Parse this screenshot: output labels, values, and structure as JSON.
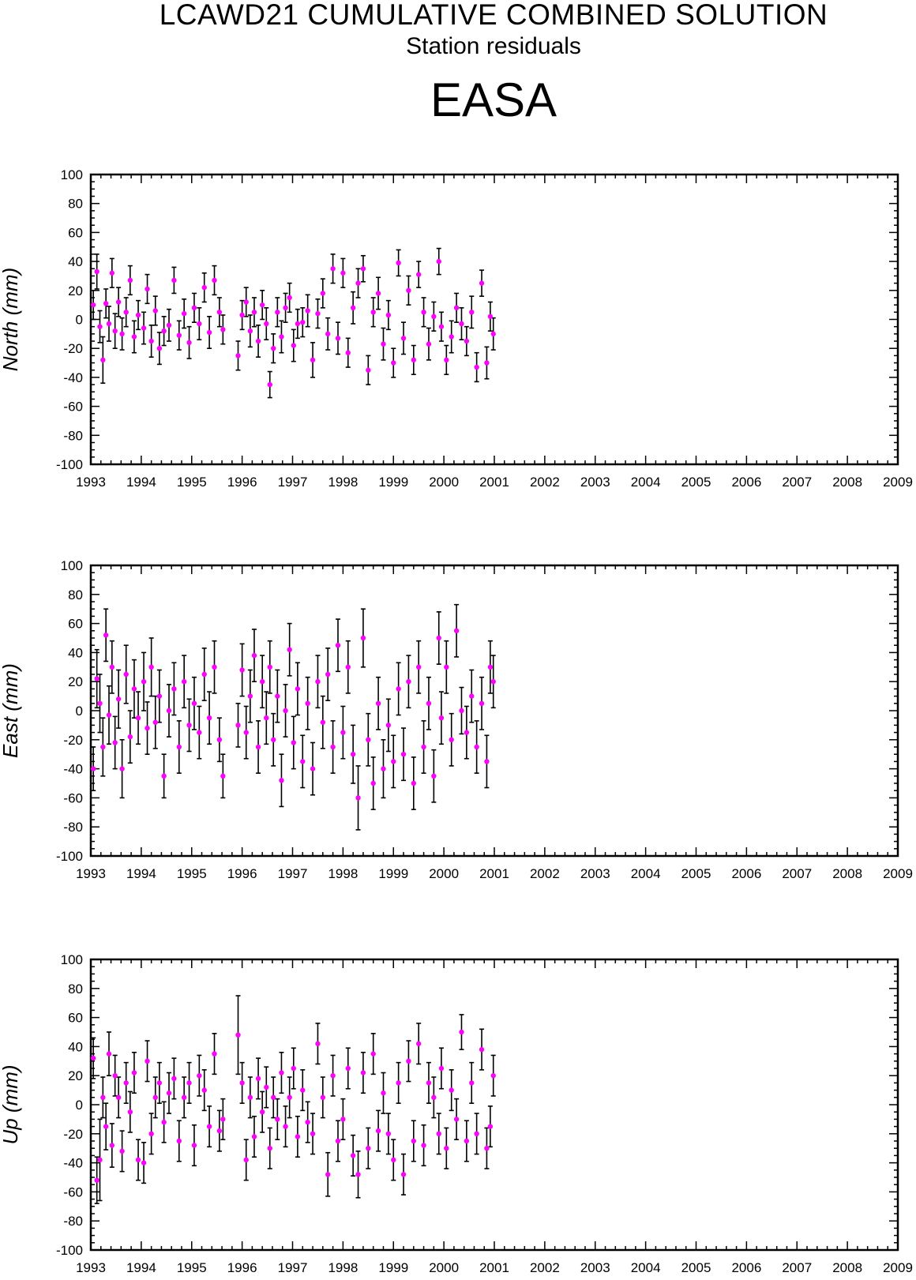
{
  "header": {
    "title": "LCAWD21 CUMULATIVE COMBINED SOLUTION",
    "subtitle": "Station residuals",
    "station": "EASA"
  },
  "colors": {
    "marker": "#ff00ff",
    "errorbar": "#000000",
    "axis": "#000000"
  },
  "chart_data": [
    {
      "type": "scatter",
      "ylabel": "North (mm)",
      "xlim": [
        1993,
        2009
      ],
      "ylim": [
        -100,
        100
      ],
      "xticks": [
        "1993",
        "1994",
        "1995",
        "1996",
        "1997",
        "1998",
        "1999",
        "2000",
        "2001",
        "2002",
        "2003",
        "2004",
        "2005",
        "2006",
        "2007",
        "2008",
        "2009"
      ],
      "yticks": [
        "100",
        "80",
        "60",
        "40",
        "20",
        "0",
        "-20",
        "-40",
        "-60",
        "-80",
        "-100"
      ],
      "series": [
        {
          "x": [
            1993.05,
            1993.12,
            1993.18,
            1993.24,
            1993.3,
            1993.36,
            1993.42,
            1993.48,
            1993.55,
            1993.62,
            1993.7,
            1993.78,
            1993.86,
            1993.94,
            1994.05,
            1994.12,
            1994.2,
            1994.28,
            1994.36,
            1994.45,
            1994.55,
            1994.65,
            1994.75,
            1994.85,
            1994.95,
            1995.05,
            1995.15,
            1995.25,
            1995.35,
            1995.45,
            1995.55,
            1995.62,
            1995.92,
            1996.0,
            1996.08,
            1996.16,
            1996.24,
            1996.32,
            1996.4,
            1996.48,
            1996.55,
            1996.62,
            1996.7,
            1996.78,
            1996.86,
            1996.94,
            1997.02,
            1997.1,
            1997.2,
            1997.3,
            1997.4,
            1997.5,
            1997.6,
            1997.7,
            1997.8,
            1997.9,
            1998.0,
            1998.1,
            1998.2,
            1998.3,
            1998.4,
            1998.5,
            1998.6,
            1998.7,
            1998.8,
            1998.9,
            1999.0,
            1999.1,
            1999.2,
            1999.3,
            1999.4,
            1999.5,
            1999.6,
            1999.7,
            1999.8,
            1999.9,
            1999.95,
            2000.05,
            2000.15,
            2000.25,
            2000.35,
            2000.45,
            2000.55,
            2000.65,
            2000.75,
            2000.85,
            2000.92,
            2000.98
          ],
          "y": [
            10,
            33,
            -5,
            -28,
            11,
            -3,
            32,
            -8,
            12,
            -10,
            5,
            27,
            -12,
            3,
            -6,
            21,
            -15,
            6,
            -20,
            -8,
            -4,
            27,
            -11,
            4,
            -16,
            8,
            -3,
            22,
            -9,
            27,
            5,
            -7,
            -25,
            3,
            12,
            -8,
            5,
            -15,
            10,
            -3,
            -45,
            -20,
            5,
            -12,
            8,
            15,
            -18,
            -3,
            -2,
            6,
            -28,
            4,
            18,
            -10,
            35,
            -13,
            32,
            -23,
            8,
            25,
            35,
            -35,
            5,
            18,
            -17,
            3,
            -30,
            39,
            -13,
            20,
            -28,
            31,
            5,
            -17,
            2,
            40,
            -5,
            -28,
            -12,
            8,
            -3,
            -15,
            5,
            -33,
            25,
            -30,
            2,
            -10
          ],
          "err": [
            10,
            12,
            11,
            16,
            10,
            12,
            10,
            12,
            10,
            11,
            10,
            10,
            11,
            10,
            11,
            10,
            11,
            10,
            11,
            10,
            11,
            9,
            10,
            10,
            11,
            10,
            11,
            10,
            11,
            10,
            10,
            10,
            10,
            10,
            10,
            11,
            10,
            11,
            10,
            11,
            9,
            10,
            10,
            11,
            10,
            10,
            11,
            10,
            10,
            11,
            12,
            10,
            10,
            11,
            10,
            11,
            10,
            10,
            11,
            10,
            9,
            10,
            10,
            11,
            11,
            10,
            10,
            9,
            11,
            10,
            10,
            9,
            10,
            11,
            10,
            9,
            10,
            10,
            11,
            10,
            11,
            10,
            11,
            10,
            9,
            11,
            10,
            11
          ]
        }
      ]
    },
    {
      "type": "scatter",
      "ylabel": "East (mm)",
      "xlim": [
        1993,
        2009
      ],
      "ylim": [
        -100,
        100
      ],
      "xticks": [
        "1993",
        "1994",
        "1995",
        "1996",
        "1997",
        "1998",
        "1999",
        "2000",
        "2001",
        "2002",
        "2003",
        "2004",
        "2005",
        "2006",
        "2007",
        "2008",
        "2009"
      ],
      "yticks": [
        "100",
        "80",
        "60",
        "40",
        "20",
        "0",
        "-20",
        "-40",
        "-60",
        "-80",
        "-100"
      ],
      "series": [
        {
          "x": [
            1993.05,
            1993.12,
            1993.18,
            1993.24,
            1993.3,
            1993.36,
            1993.42,
            1993.48,
            1993.55,
            1993.62,
            1993.7,
            1993.78,
            1993.86,
            1993.94,
            1994.05,
            1994.12,
            1994.2,
            1994.28,
            1994.36,
            1994.45,
            1994.55,
            1994.65,
            1994.75,
            1994.85,
            1994.95,
            1995.05,
            1995.15,
            1995.25,
            1995.35,
            1995.45,
            1995.55,
            1995.62,
            1995.92,
            1996.0,
            1996.08,
            1996.16,
            1996.24,
            1996.32,
            1996.4,
            1996.48,
            1996.55,
            1996.62,
            1996.7,
            1996.78,
            1996.86,
            1996.94,
            1997.02,
            1997.1,
            1997.2,
            1997.3,
            1997.4,
            1997.5,
            1997.6,
            1997.7,
            1997.8,
            1997.9,
            1998.0,
            1998.1,
            1998.2,
            1998.3,
            1998.4,
            1998.5,
            1998.6,
            1998.7,
            1998.8,
            1998.9,
            1999.0,
            1999.1,
            1999.2,
            1999.3,
            1999.4,
            1999.5,
            1999.6,
            1999.7,
            1999.8,
            1999.9,
            1999.95,
            2000.05,
            2000.15,
            2000.25,
            2000.35,
            2000.45,
            2000.55,
            2000.65,
            2000.75,
            2000.85,
            2000.92,
            2000.98
          ],
          "y": [
            -40,
            22,
            5,
            -25,
            52,
            -3,
            30,
            -22,
            8,
            -40,
            25,
            -18,
            15,
            -5,
            20,
            -12,
            30,
            -8,
            10,
            -45,
            0,
            15,
            -25,
            20,
            -10,
            5,
            -15,
            25,
            -5,
            30,
            -20,
            -45,
            -10,
            28,
            -15,
            10,
            38,
            -25,
            20,
            -5,
            30,
            -20,
            10,
            -48,
            0,
            42,
            -22,
            15,
            -35,
            5,
            -40,
            20,
            -8,
            25,
            -25,
            45,
            -15,
            30,
            -30,
            -60,
            50,
            -20,
            -50,
            5,
            -40,
            -10,
            -35,
            15,
            -30,
            20,
            -50,
            30,
            -25,
            5,
            -45,
            50,
            -5,
            30,
            -20,
            55,
            0,
            -15,
            10,
            -25,
            5,
            -35,
            30,
            20
          ],
          "err": [
            15,
            20,
            20,
            20,
            18,
            20,
            18,
            18,
            20,
            20,
            20,
            18,
            20,
            18,
            20,
            18,
            20,
            18,
            18,
            15,
            18,
            18,
            18,
            18,
            18,
            18,
            18,
            18,
            18,
            18,
            15,
            15,
            15,
            18,
            18,
            18,
            18,
            18,
            18,
            18,
            18,
            18,
            18,
            18,
            18,
            18,
            18,
            18,
            18,
            18,
            18,
            18,
            18,
            18,
            18,
            18,
            18,
            18,
            20,
            22,
            20,
            18,
            18,
            18,
            20,
            18,
            18,
            18,
            18,
            18,
            18,
            18,
            18,
            18,
            18,
            18,
            18,
            18,
            18,
            18,
            16,
            18,
            18,
            18,
            18,
            18,
            18,
            18
          ]
        }
      ]
    },
    {
      "type": "scatter",
      "ylabel": "Up (mm)",
      "xlim": [
        1993,
        2009
      ],
      "ylim": [
        -100,
        100
      ],
      "xticks": [
        "1993",
        "1994",
        "1995",
        "1996",
        "1997",
        "1998",
        "1999",
        "2000",
        "2001",
        "2002",
        "2003",
        "2004",
        "2005",
        "2006",
        "2007",
        "2008",
        "2009"
      ],
      "yticks": [
        "100",
        "80",
        "60",
        "40",
        "20",
        "0",
        "-20",
        "-40",
        "-60",
        "-80",
        "-100"
      ],
      "series": [
        {
          "x": [
            1993.05,
            1993.12,
            1993.18,
            1993.24,
            1993.3,
            1993.36,
            1993.42,
            1993.48,
            1993.55,
            1993.62,
            1993.7,
            1993.78,
            1993.86,
            1993.94,
            1994.05,
            1994.12,
            1994.2,
            1994.28,
            1994.36,
            1994.45,
            1994.55,
            1994.65,
            1994.75,
            1994.85,
            1994.95,
            1995.05,
            1995.15,
            1995.25,
            1995.35,
            1995.45,
            1995.55,
            1995.62,
            1995.92,
            1996.0,
            1996.08,
            1996.16,
            1996.24,
            1996.32,
            1996.4,
            1996.48,
            1996.55,
            1996.62,
            1996.7,
            1996.78,
            1996.86,
            1996.94,
            1997.02,
            1997.1,
            1997.2,
            1997.3,
            1997.4,
            1997.5,
            1997.6,
            1997.7,
            1997.8,
            1997.9,
            1998.0,
            1998.1,
            1998.2,
            1998.3,
            1998.4,
            1998.5,
            1998.6,
            1998.7,
            1998.8,
            1998.9,
            1999.0,
            1999.1,
            1999.2,
            1999.3,
            1999.4,
            1999.5,
            1999.6,
            1999.7,
            1999.8,
            1999.9,
            1999.95,
            2000.05,
            2000.15,
            2000.25,
            2000.35,
            2000.45,
            2000.55,
            2000.65,
            2000.75,
            2000.85,
            2000.92,
            2000.98
          ],
          "y": [
            32,
            -52,
            -38,
            5,
            -15,
            35,
            -28,
            20,
            5,
            -32,
            15,
            -5,
            22,
            -38,
            -40,
            30,
            -20,
            5,
            15,
            -12,
            8,
            18,
            -25,
            5,
            15,
            -28,
            20,
            10,
            -15,
            35,
            -18,
            -10,
            48,
            15,
            -38,
            5,
            -22,
            18,
            -5,
            12,
            -30,
            5,
            -10,
            22,
            -15,
            5,
            25,
            -22,
            10,
            -12,
            -20,
            42,
            5,
            -48,
            20,
            -25,
            -10,
            25,
            -35,
            -48,
            22,
            -30,
            35,
            -18,
            8,
            -20,
            -38,
            15,
            -48,
            30,
            -25,
            42,
            -28,
            15,
            5,
            -20,
            25,
            -30,
            10,
            -10,
            50,
            -25,
            15,
            -20,
            38,
            -30,
            -15,
            20
          ],
          "err": [
            14,
            16,
            28,
            14,
            16,
            15,
            15,
            14,
            14,
            14,
            14,
            14,
            14,
            14,
            14,
            14,
            14,
            14,
            14,
            14,
            14,
            14,
            14,
            14,
            14,
            14,
            14,
            14,
            14,
            14,
            14,
            14,
            27,
            14,
            14,
            14,
            14,
            14,
            14,
            14,
            14,
            14,
            14,
            14,
            14,
            14,
            14,
            14,
            14,
            14,
            14,
            14,
            14,
            15,
            14,
            14,
            14,
            14,
            14,
            16,
            14,
            14,
            14,
            14,
            14,
            14,
            14,
            14,
            14,
            14,
            14,
            14,
            14,
            14,
            14,
            14,
            14,
            14,
            14,
            14,
            12,
            14,
            14,
            14,
            14,
            14,
            14,
            14
          ]
        }
      ]
    }
  ]
}
